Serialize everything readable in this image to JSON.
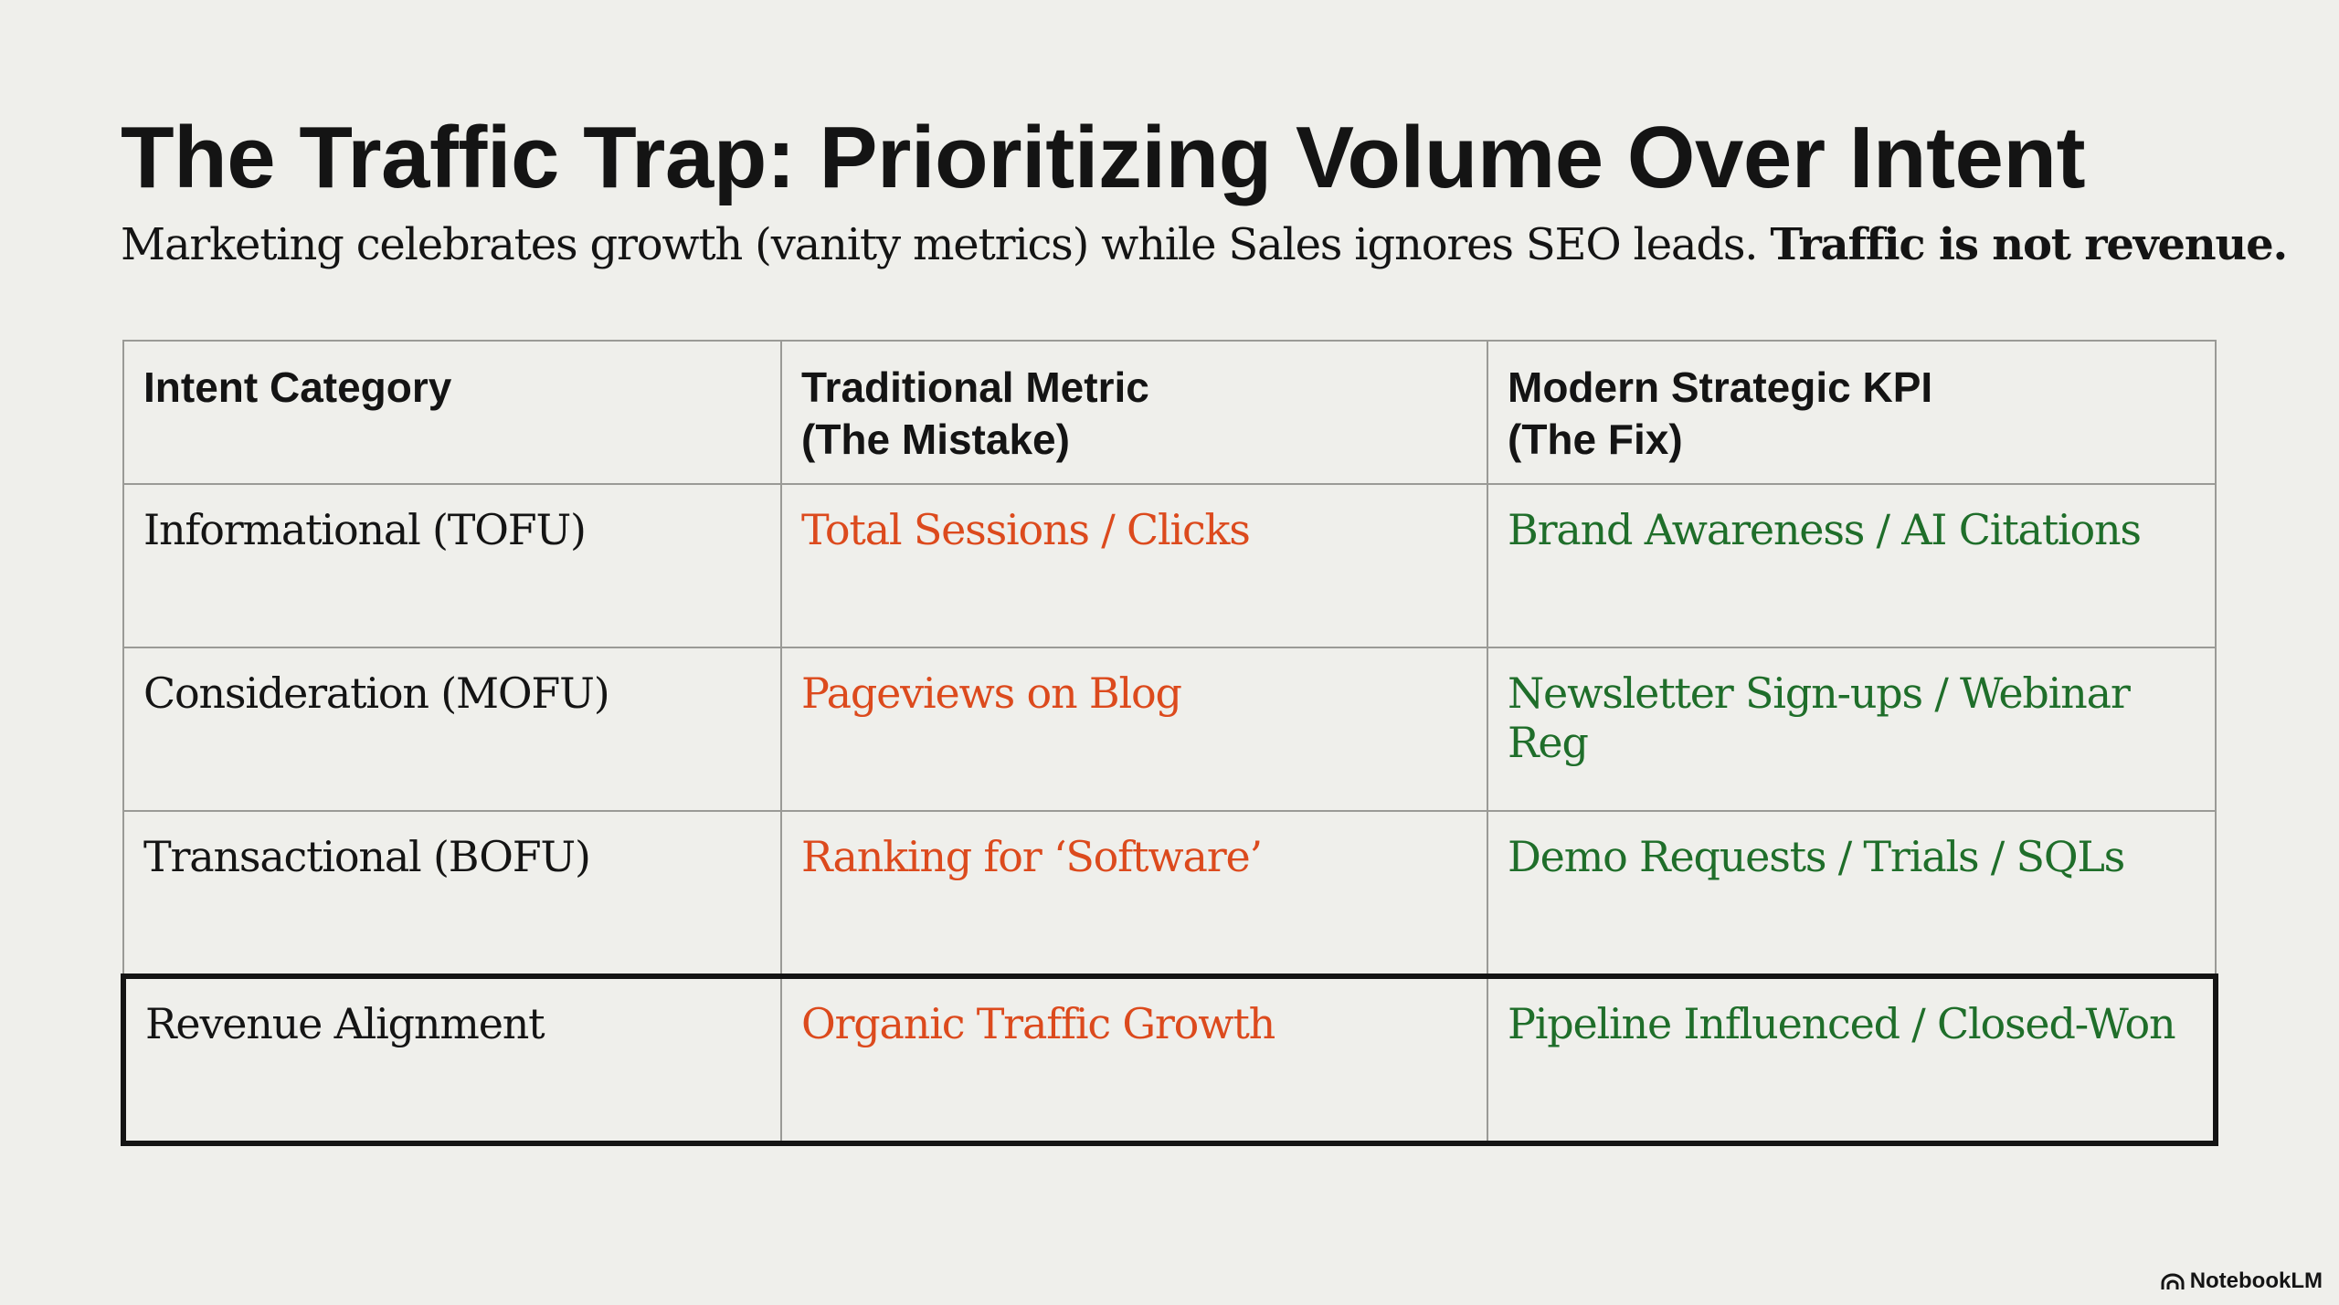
{
  "title": "The Traffic Trap: Prioritizing Volume Over Intent",
  "subtitle": {
    "text": "Marketing celebrates growth (vanity metrics) while Sales ignores SEO leads.",
    "emphasis": "Traffic is not revenue."
  },
  "table": {
    "headers": [
      {
        "line1": "Intent Category",
        "line2": ""
      },
      {
        "line1": "Traditional Metric",
        "line2": "(The Mistake)"
      },
      {
        "line1": "Modern Strategic KPI",
        "line2": "(The Fix)"
      }
    ],
    "rows": [
      {
        "category": "Informational (TOFU)",
        "traditional": "Total Sessions / Clicks",
        "modern": "Brand Awareness / AI Citations"
      },
      {
        "category": "Consideration (MOFU)",
        "traditional": "Pageviews on Blog",
        "modern": "Newsletter Sign-ups / Webinar Reg"
      },
      {
        "category": "Transactional (BOFU)",
        "traditional": "Ranking for ‘Software’",
        "modern": "Demo Requests / Trials / SQLs"
      },
      {
        "category": "Revenue Alignment",
        "traditional": "Organic Traffic Growth",
        "modern": "Pipeline Influenced / Closed-Won"
      }
    ]
  },
  "watermark": "NotebookLM",
  "colors": {
    "mistake": "#dc4a1d",
    "fix": "#1f6e2a"
  }
}
